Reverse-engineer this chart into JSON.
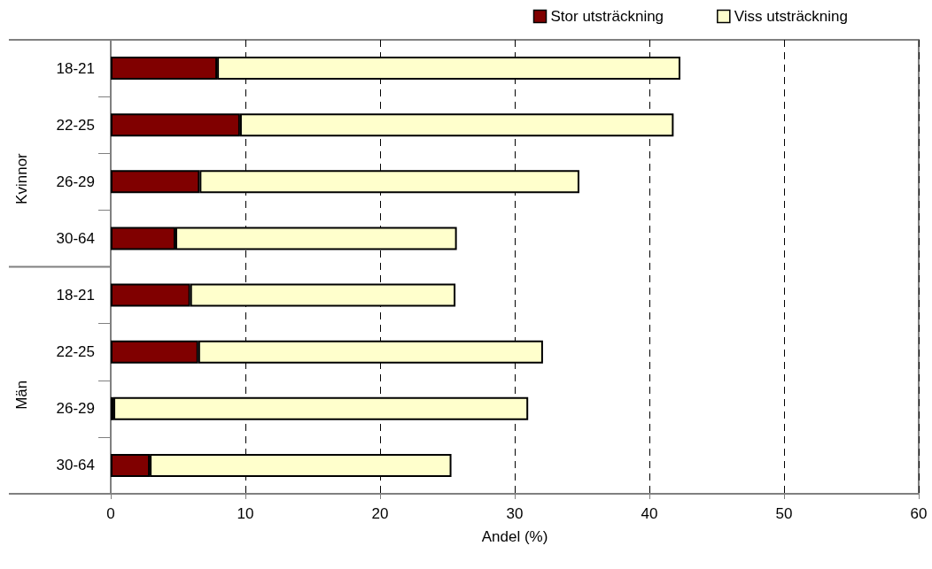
{
  "chart_data": {
    "type": "bar",
    "orientation": "horizontal",
    "stacked": true,
    "xlabel": "Andel (%)",
    "categories": [
      "18-21",
      "22-25",
      "26-29",
      "30-64",
      "18-21",
      "22-25",
      "26-29",
      "30-64"
    ],
    "series": [
      {
        "name": "Stor utsträckning",
        "color": "#800000",
        "values": [
          7.9,
          9.6,
          6.6,
          4.8,
          5.9,
          6.5,
          0.2,
          2.9
        ]
      },
      {
        "name": "Viss utsträckning",
        "color": "#ffffcc",
        "values": [
          34.4,
          32.2,
          28.2,
          20.9,
          19.7,
          25.6,
          30.8,
          22.4
        ]
      }
    ],
    "xlim": [
      0,
      60
    ],
    "xticks": [
      0,
      10,
      20,
      30,
      40,
      50,
      60
    ],
    "annotations": [
      "Kvinnor",
      "Män"
    ],
    "grid": "x",
    "legend": "top right"
  }
}
